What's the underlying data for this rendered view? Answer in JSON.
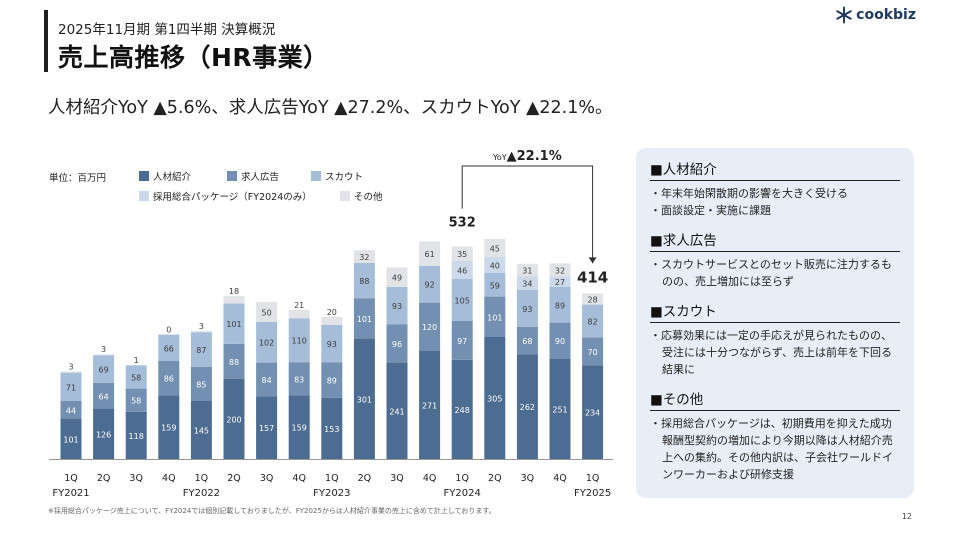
{
  "header": {
    "subtitle": "2025年11月期 第1四半期 決算概況",
    "title": "売上高推移（HR事業）"
  },
  "logo": {
    "text": "cookbiz",
    "icon": "cookbiz-star-icon",
    "color": "#1f3a60"
  },
  "summary": "人材紹介YoY ▲5.6%、求人広告YoY ▲27.2%、スカウトYoY ▲22.1%。",
  "chart_data": {
    "type": "bar",
    "stacked": true,
    "unit_label": "単位：百万円",
    "categories": [
      "1Q",
      "2Q",
      "3Q",
      "4Q",
      "1Q",
      "2Q",
      "3Q",
      "4Q",
      "1Q",
      "2Q",
      "3Q",
      "4Q",
      "1Q",
      "2Q",
      "3Q",
      "4Q",
      "1Q"
    ],
    "fiscal_years": [
      {
        "label": "FY2021",
        "index": 0
      },
      {
        "label": "FY2022",
        "index": 4
      },
      {
        "label": "FY2023",
        "index": 8
      },
      {
        "label": "FY2024",
        "index": 12
      },
      {
        "label": "FY2025",
        "index": 16
      }
    ],
    "series": [
      {
        "name": "人材紹介",
        "color": "#4d6c91",
        "values": [
          101,
          126,
          118,
          159,
          145,
          200,
          157,
          159,
          153,
          301,
          241,
          271,
          248,
          305,
          262,
          251,
          234
        ]
      },
      {
        "name": "求人広告",
        "color": "#7390b2",
        "values": [
          44,
          64,
          58,
          86,
          85,
          88,
          84,
          83,
          89,
          101,
          96,
          120,
          97,
          101,
          68,
          90,
          70
        ]
      },
      {
        "name": "スカウト",
        "color": "#a5bdd8",
        "values": [
          71,
          69,
          58,
          66,
          87,
          101,
          102,
          110,
          93,
          88,
          93,
          92,
          105,
          59,
          93,
          89,
          82
        ]
      },
      {
        "name": "採用総合パッケージ（FY2024のみ）",
        "color": "#ccd9ea",
        "values": [
          null,
          null,
          null,
          null,
          null,
          null,
          null,
          null,
          null,
          null,
          null,
          null,
          46,
          40,
          34,
          27,
          null
        ]
      },
      {
        "name": "その他",
        "color": "#e1e3e7",
        "values": [
          3,
          3,
          1,
          0,
          3,
          18,
          50,
          21,
          20,
          32,
          49,
          61,
          35,
          45,
          31,
          32,
          28
        ]
      }
    ],
    "totals_shown": [
      {
        "index": 12,
        "value": "532"
      },
      {
        "index": 16,
        "value": "414"
      }
    ],
    "annotation": {
      "prefix": "YoY",
      "value": "▲22.1%"
    },
    "legend_placement": "top-left",
    "grid": false
  },
  "side_panel": {
    "background": "#e7eef8",
    "sections": [
      {
        "title": "■人材紹介",
        "bullets": [
          "・年末年始閑散期の影響を大きく受ける",
          "・面談設定・実施に課題"
        ]
      },
      {
        "title": "■求人広告",
        "bullets": [
          "・スカウトサービスとのセット販売に注力するものの、売上増加には至らず"
        ]
      },
      {
        "title": "■スカウト",
        "bullets": [
          "・応募効果には一定の手応えが見られたものの、受注には十分つながらず、売上は前年を下回る結果に"
        ]
      },
      {
        "title": "■その他",
        "bullets": [
          "・採用総合パッケージは、初期費用を抑えた成功報酬型契約の増加により今期以降は人材紹介売上への集約。その他内訳は、子会社ワールドインワーカーおよび研修支援"
        ]
      }
    ]
  },
  "footnote": "※採用総合パッケージ売上について、FY2024では個別記載しておりましたが、FY2025からは人材紹介事業の売上に含めて計上しております。",
  "page_number": "12"
}
